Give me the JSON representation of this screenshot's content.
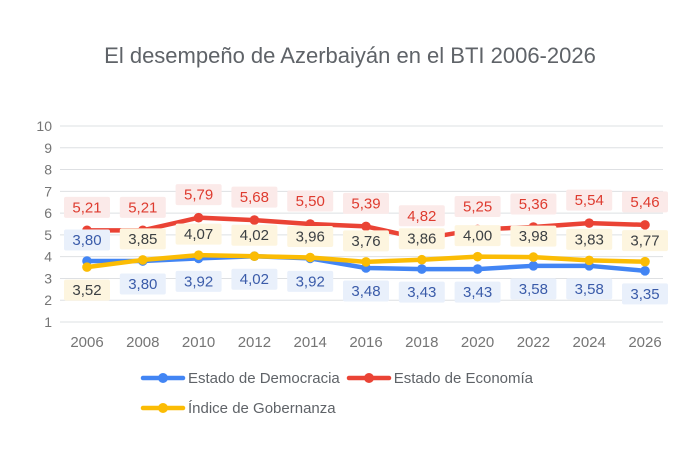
{
  "chart_data": {
    "type": "line",
    "title": "El desempeño de Azerbaiyán en el BTI 2006-2026",
    "x": [
      2006,
      2008,
      2010,
      2012,
      2014,
      2016,
      2018,
      2020,
      2022,
      2024,
      2026
    ],
    "series": [
      {
        "name": "Estado de Democracia",
        "color": "#4285F4",
        "label_text_color": "#3A5BA9",
        "label_bg": "#E9F0FB",
        "values": [
          3.8,
          3.8,
          3.92,
          4.02,
          3.92,
          3.48,
          3.43,
          3.43,
          3.58,
          3.58,
          3.35
        ]
      },
      {
        "name": "Estado de Economía",
        "color": "#EA4335",
        "label_text_color": "#DE3B2F",
        "label_bg": "#FBEAE9",
        "values": [
          5.21,
          5.21,
          5.79,
          5.68,
          5.5,
          5.39,
          4.82,
          5.25,
          5.36,
          5.54,
          5.46
        ]
      },
      {
        "name": "Índice de Gobernanza",
        "color": "#FBBC04",
        "label_text_color": "#3C4043",
        "label_bg": "#FDF5DF",
        "values": [
          3.52,
          3.85,
          4.07,
          4.02,
          3.96,
          3.76,
          3.86,
          4.0,
          3.98,
          3.83,
          3.77
        ]
      }
    ],
    "xlabel": "",
    "ylabel": "",
    "ylim": [
      1,
      10
    ],
    "yticks": [
      1,
      2,
      3,
      4,
      5,
      6,
      7,
      8,
      9,
      10
    ],
    "grid": "horizontal",
    "legend_position": "bottom",
    "data_labels": true,
    "decimal_separator": ","
  },
  "styles": {
    "background": "#FFFFFF",
    "title_color": "#5F6368",
    "axis_label_color": "#757575",
    "grid_color": "#DEE0E3",
    "legend_text_color": "#5F6368"
  }
}
